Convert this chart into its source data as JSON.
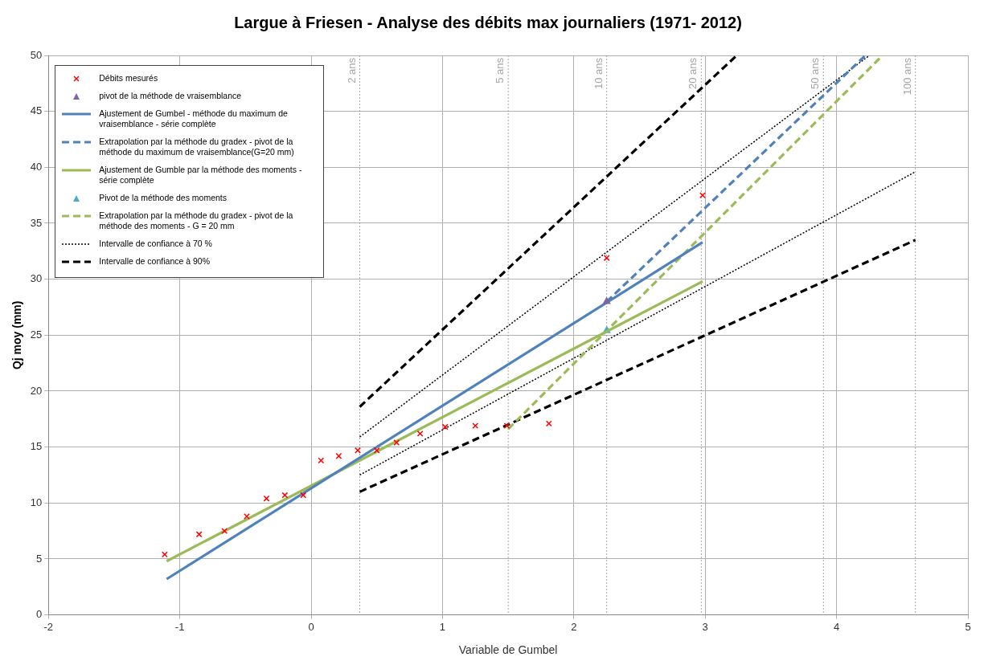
{
  "chart_data": {
    "type": "scatter",
    "title": "Largue à Friesen - Analyse des débits max journaliers (1971- 2012)",
    "xlabel": "Variable de Gumbel",
    "ylabel": "Qj moy (mm)",
    "xlim": [
      -2,
      5
    ],
    "xticks": [
      -2,
      -1,
      0,
      1,
      2,
      3,
      4,
      5
    ],
    "ylim": [
      0,
      50
    ],
    "yticks": [
      0,
      5,
      10,
      15,
      20,
      25,
      30,
      35,
      40,
      45,
      50
    ],
    "grid": true,
    "legend": "top left",
    "series": [
      {
        "name": "Débits mesurés",
        "type": "scatter",
        "marker": "cross",
        "color": "#ff0000",
        "x": [
          -1.115,
          -0.853,
          -0.66,
          -0.49,
          -0.34,
          -0.2,
          -0.06,
          0.075,
          0.21,
          0.355,
          0.5,
          0.65,
          0.83,
          1.02,
          1.25,
          1.49,
          1.81,
          2.25,
          2.98
        ],
        "values": [
          5.4,
          7.2,
          7.5,
          8.8,
          10.4,
          10.7,
          10.7,
          13.8,
          14.2,
          14.7,
          14.7,
          15.4,
          16.2,
          16.8,
          16.9,
          16.9,
          17.1,
          31.9,
          37.5
        ]
      },
      {
        "name": "pivot de la méthode de vraisemblance",
        "type": "scatter",
        "marker": "triangle",
        "color": "#8064a2",
        "x": [
          2.25
        ],
        "values": [
          28.0
        ]
      },
      {
        "name": "Ajustement de Gumbel - méthode du maximum de vraisemblance - série complète",
        "type": "line",
        "marker": "none",
        "line_style": "solid",
        "color": "#4f81bd",
        "x": [
          -1.1,
          2.98
        ],
        "values": [
          3.2,
          33.3
        ]
      },
      {
        "name": "Extrapolation par la méthode du gradex - pivot de la méthode du maximum de vraisemblance(G=20 mm)",
        "type": "line",
        "marker": "none",
        "line_style": "dashed",
        "color": "#4f81bd",
        "x": [
          2.25,
          4.22
        ],
        "values": [
          28.0,
          50
        ]
      },
      {
        "name": "Ajustement de Gumble par la méthode des moments - série complète",
        "type": "line",
        "marker": "none",
        "line_style": "solid",
        "color": "#9bbb59",
        "x": [
          -1.1,
          2.98
        ],
        "values": [
          4.8,
          29.8
        ]
      },
      {
        "name": "Pivot de la méthode des moments",
        "type": "scatter",
        "marker": "triangle",
        "color": "#4bacc6",
        "x": [
          2.25
        ],
        "values": [
          25.4
        ]
      },
      {
        "name": "Extrapolation par la méthode du gradex - pivot de la méthode des moments - G = 20 mm",
        "type": "line",
        "marker": "none",
        "line_style": "dashed",
        "color": "#9bbb59",
        "x": [
          1.5,
          4.35
        ],
        "values": [
          16.6,
          50
        ]
      },
      {
        "name": "Intervalle de confiance à 70 %",
        "type": "line",
        "marker": "none",
        "line_style": "dotted",
        "color": "#000000",
        "x": [
          0.37,
          4.25
        ],
        "values": [
          15.9,
          50
        ]
      },
      {
        "type": "line",
        "marker": "none",
        "line_style": "dotted",
        "color": "#000000",
        "x": [
          0.37,
          4.6
        ],
        "values": [
          12.5,
          39.6
        ]
      },
      {
        "name": "Intervalle de confiance à 90%",
        "type": "line",
        "marker": "none",
        "line_style": "dashed",
        "color": "#000000",
        "x": [
          0.37,
          3.24
        ],
        "values": [
          18.6,
          50
        ]
      },
      {
        "type": "line",
        "marker": "none",
        "line_style": "dashed",
        "color": "#000000",
        "x": [
          0.37,
          4.6
        ],
        "values": [
          11.0,
          33.5
        ]
      }
    ],
    "ref_lines": [
      {
        "axis": "x",
        "value": 0.37,
        "label": "2 ans",
        "color": "#a6a6a6",
        "line_style": "dotted"
      },
      {
        "axis": "x",
        "value": 1.5,
        "label": "5 ans",
        "color": "#a6a6a6",
        "line_style": "dotted"
      },
      {
        "axis": "x",
        "value": 2.25,
        "label": "10 ans",
        "color": "#a6a6a6",
        "line_style": "dotted"
      },
      {
        "axis": "x",
        "value": 2.97,
        "label": "20 ans",
        "color": "#a6a6a6",
        "line_style": "dotted"
      },
      {
        "axis": "x",
        "value": 3.9,
        "label": "50 ans",
        "color": "#a6a6a6",
        "line_style": "dotted"
      },
      {
        "axis": "x",
        "value": 4.6,
        "label": "100 ans",
        "color": "#a6a6a6",
        "line_style": "dotted"
      }
    ]
  }
}
